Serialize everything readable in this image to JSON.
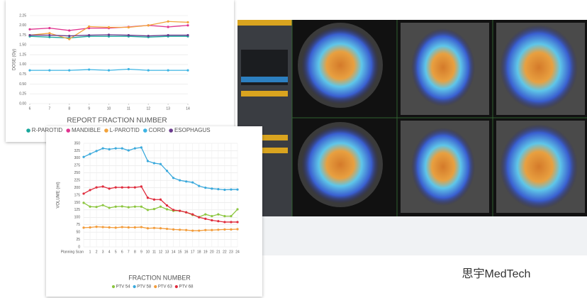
{
  "chart_data": [
    {
      "type": "line",
      "x_label": "REPORT FRACTION NUMBER",
      "y_label": "DOSE (Gy)",
      "x": [
        6,
        7,
        8,
        9,
        10,
        11,
        12,
        13,
        14
      ],
      "xlim": [
        6,
        14
      ],
      "xticks": [
        6,
        7,
        8,
        9,
        10,
        11,
        12,
        13,
        14
      ],
      "ylim": [
        0,
        2.25
      ],
      "yticks": [
        {
          "value": 0,
          "label": "0.00"
        },
        {
          "value": 0.25,
          "label": "0.25"
        },
        {
          "value": 0.5,
          "label": "0.50"
        },
        {
          "value": 0.75,
          "label": "0.75"
        },
        {
          "value": 1,
          "label": "1.00"
        },
        {
          "value": 1.25,
          "label": "1.25"
        },
        {
          "value": 1.5,
          "label": "1.50"
        },
        {
          "value": 1.75,
          "label": "1.75"
        },
        {
          "value": 2,
          "label": "2.00"
        },
        {
          "value": 2.25,
          "label": "2.25"
        }
      ],
      "grid": true,
      "legend": "bottom",
      "series": [
        {
          "name": "R-PAROTID",
          "color": "#1aa79c",
          "values": [
            1.72,
            1.7,
            1.68,
            1.72,
            1.72,
            1.72,
            1.7,
            1.72,
            1.72
          ]
        },
        {
          "name": "MANDIBLE",
          "color": "#e0338f",
          "values": [
            1.9,
            1.93,
            1.87,
            1.93,
            1.93,
            1.96,
            2.0,
            1.96,
            2.0
          ]
        },
        {
          "name": "L-PAROTID",
          "color": "#f2a23a",
          "values": [
            1.75,
            1.8,
            1.65,
            1.97,
            1.95,
            1.95,
            2.0,
            2.1,
            2.08
          ]
        },
        {
          "name": "CORD",
          "color": "#3db4e3",
          "values": [
            0.85,
            0.85,
            0.85,
            0.87,
            0.85,
            0.88,
            0.85,
            0.85,
            0.85
          ]
        },
        {
          "name": "ESOPHAGUS",
          "color": "#6a3a8e",
          "values": [
            1.75,
            1.75,
            1.73,
            1.75,
            1.76,
            1.75,
            1.73,
            1.75,
            1.75
          ]
        }
      ]
    },
    {
      "type": "line",
      "x_label": "FRACTION NUMBER",
      "y_label": "VOLUME (ml)",
      "categories": [
        "Planning Scan",
        "1",
        "2",
        "3",
        "4",
        "5",
        "6",
        "7",
        "8",
        "9",
        "10",
        "11",
        "12",
        "13",
        "14",
        "15",
        "16",
        "17",
        "18",
        "19",
        "20",
        "21",
        "22",
        "23",
        "24"
      ],
      "ylim": [
        0,
        350
      ],
      "yticks": [
        0,
        25,
        50,
        75,
        100,
        125,
        150,
        175,
        200,
        225,
        250,
        275,
        300,
        325,
        350
      ],
      "grid": true,
      "legend": "bottom",
      "series": [
        {
          "name": "PTV 54",
          "color": "#8cc63f",
          "values": [
            149,
            136,
            135,
            141,
            132,
            136,
            137,
            134,
            136,
            136,
            125,
            128,
            136,
            127,
            122,
            122,
            117,
            108,
            101,
            110,
            104,
            110,
            104,
            104,
            127
          ]
        },
        {
          "name": "PTV 58",
          "color": "#3aa9dc",
          "values": [
            304,
            314,
            324,
            333,
            330,
            333,
            333,
            326,
            333,
            336,
            290,
            283,
            280,
            257,
            233,
            225,
            221,
            218,
            206,
            200,
            197,
            195,
            193,
            194,
            194
          ]
        },
        {
          "name": "PTV 63",
          "color": "#f39c3a",
          "values": [
            65,
            66,
            68,
            67,
            66,
            65,
            67,
            66,
            66,
            67,
            63,
            64,
            63,
            61,
            59,
            58,
            57,
            55,
            55,
            57,
            57,
            58,
            59,
            59,
            60
          ]
        },
        {
          "name": "PTV 68",
          "color": "#e02b3c",
          "values": [
            180,
            192,
            201,
            204,
            197,
            201,
            201,
            201,
            201,
            204,
            166,
            160,
            160,
            140,
            125,
            122,
            117,
            110,
            100,
            95,
            90,
            87,
            84,
            84,
            84
          ]
        }
      ]
    }
  ],
  "watermark": "思宇MedTech"
}
